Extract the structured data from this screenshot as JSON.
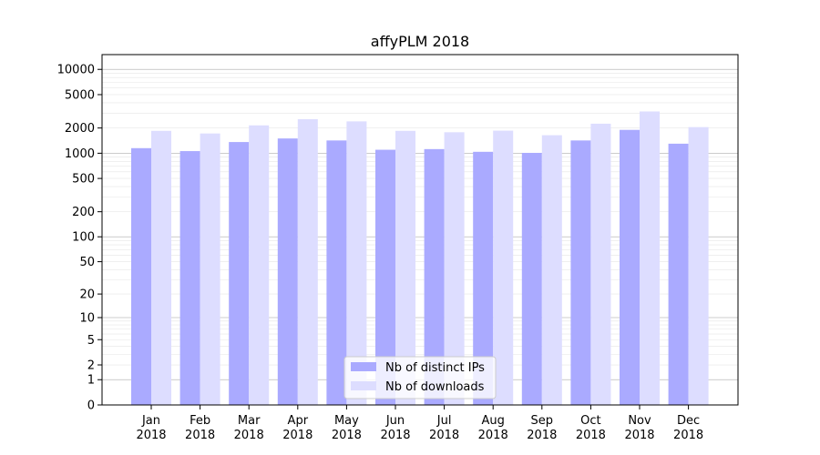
{
  "chart_data": {
    "type": "bar",
    "title": "affyPLM 2018",
    "xlabel": "",
    "ylabel": "",
    "y_scale": "symlog",
    "ylim": [
      0,
      15000
    ],
    "grid": true,
    "legend_position": "lower-center",
    "categories": [
      [
        "Jan",
        "2018"
      ],
      [
        "Feb",
        "2018"
      ],
      [
        "Mar",
        "2018"
      ],
      [
        "Apr",
        "2018"
      ],
      [
        "May",
        "2018"
      ],
      [
        "Jun",
        "2018"
      ],
      [
        "Jul",
        "2018"
      ],
      [
        "Aug",
        "2018"
      ],
      [
        "Sep",
        "2018"
      ],
      [
        "Oct",
        "2018"
      ],
      [
        "Nov",
        "2018"
      ],
      [
        "Dec",
        "2018"
      ]
    ],
    "y_ticks": [
      0,
      1,
      2,
      5,
      10,
      20,
      50,
      100,
      200,
      500,
      1000,
      2000,
      5000,
      10000
    ],
    "series": [
      {
        "name": "Nb of distinct IPs",
        "color": "#aaaaff",
        "values": [
          1150,
          1060,
          1360,
          1500,
          1420,
          1100,
          1120,
          1040,
          1010,
          1420,
          1900,
          1300
        ]
      },
      {
        "name": "Nb of downloads",
        "color": "#ddddff",
        "values": [
          1850,
          1720,
          2150,
          2550,
          2400,
          1850,
          1780,
          1860,
          1640,
          2250,
          3150,
          2050
        ]
      }
    ]
  }
}
